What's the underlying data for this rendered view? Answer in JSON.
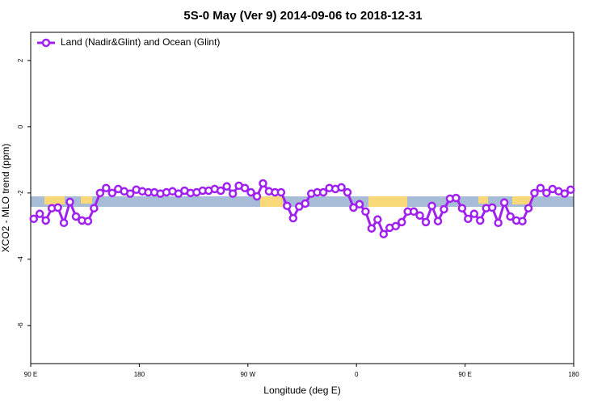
{
  "chart_data": {
    "type": "line",
    "title": "5S-0 May (Ver 9)   2014-09-06 to 2018-12-31",
    "x_label": "Longitude (deg E)",
    "y_label": "XCO2 - MLO trend (ppm)",
    "xlim": [
      90,
      540
    ],
    "xticks": [
      {
        "value": 90,
        "label": "90 E"
      },
      {
        "value": 180,
        "label": "180"
      },
      {
        "value": 270,
        "label": "90 W"
      },
      {
        "value": 360,
        "label": "0"
      },
      {
        "value": 450,
        "label": "90 E"
      },
      {
        "value": 540,
        "label": "180"
      }
    ],
    "ylim": [
      -7.15,
      2.85
    ],
    "yticks": [
      -6,
      -4,
      -2,
      0,
      2
    ],
    "legend": "top-left",
    "x": [
      92.5,
      97.5,
      102.5,
      107.5,
      112.5,
      117.5,
      122.5,
      127.5,
      132.5,
      137.5,
      142.5,
      147.5,
      152.5,
      157.5,
      162.5,
      167.5,
      172.5,
      177.5,
      182.5,
      187.5,
      192.5,
      197.5,
      202.5,
      207.5,
      212.5,
      217.5,
      222.5,
      227.5,
      232.5,
      237.5,
      242.5,
      247.5,
      252.5,
      257.5,
      262.5,
      267.5,
      272.5,
      277.5,
      282.5,
      287.5,
      292.5,
      297.5,
      302.5,
      307.5,
      312.5,
      317.5,
      322.5,
      327.5,
      332.5,
      337.5,
      342.5,
      347.5,
      352.5,
      357.5,
      362.5,
      367.5,
      372.5,
      377.5,
      382.5,
      387.5,
      392.5,
      397.5,
      402.5,
      407.5,
      412.5,
      417.5,
      422.5,
      427.5,
      432.5,
      437.5,
      442.5,
      447.5,
      452.5,
      457.5,
      462.5,
      467.5,
      472.5,
      477.5,
      482.5,
      487.5,
      492.5,
      497.5,
      502.5,
      507.5,
      512.5,
      517.5,
      522.5,
      527.5,
      532.5,
      537.5
    ],
    "series": [
      {
        "name": "Land (Nadir&Glint) and Ocean (Glint)",
        "color": "#a020f0",
        "values": [
          -2.78,
          -2.63,
          -2.83,
          -2.46,
          -2.44,
          -2.9,
          -2.27,
          -2.71,
          -2.83,
          -2.85,
          -2.46,
          -2.0,
          -1.85,
          -2.0,
          -1.88,
          -1.95,
          -2.02,
          -1.9,
          -1.95,
          -1.98,
          -1.98,
          -2.02,
          -1.98,
          -1.95,
          -2.02,
          -1.93,
          -2.0,
          -1.98,
          -1.93,
          -1.93,
          -1.88,
          -1.93,
          -1.8,
          -2.02,
          -1.78,
          -1.85,
          -1.98,
          -2.1,
          -1.71,
          -1.95,
          -1.98,
          -1.98,
          -2.39,
          -2.76,
          -2.41,
          -2.32,
          -2.02,
          -1.98,
          -1.98,
          -1.85,
          -1.88,
          -1.83,
          -1.98,
          -2.44,
          -2.34,
          -2.56,
          -3.07,
          -2.8,
          -3.24,
          -3.05,
          -3.0,
          -2.88,
          -2.56,
          -2.56,
          -2.68,
          -2.88,
          -2.39,
          -2.85,
          -2.49,
          -2.17,
          -2.15,
          -2.46,
          -2.78,
          -2.63,
          -2.83,
          -2.46,
          -2.44,
          -2.9,
          -2.29,
          -2.71,
          -2.83,
          -2.85,
          -2.46,
          -2.0,
          -1.85,
          -2.0,
          -1.88,
          -1.95,
          -2.02,
          -1.9
        ]
      }
    ]
  }
}
